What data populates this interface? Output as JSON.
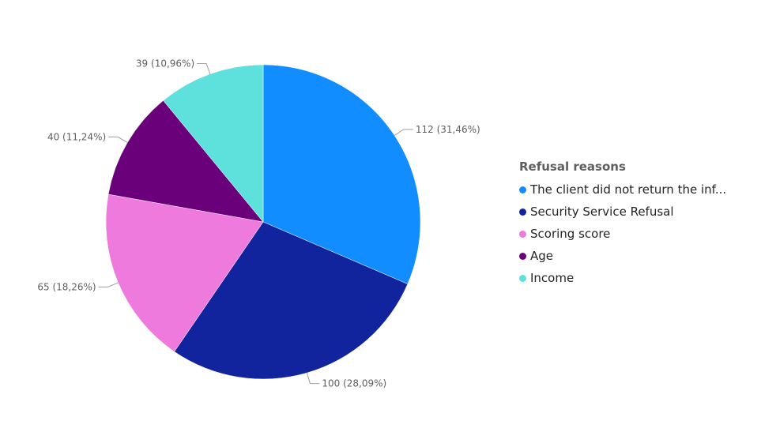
{
  "chart_data": {
    "type": "pie",
    "categories": [
      "The client did not return the inf...",
      "Security Service Refusal",
      "Scoring score",
      "Age",
      "Income"
    ],
    "values": [
      112,
      100,
      65,
      40,
      39
    ],
    "data_labels": [
      "112 (31,46%)",
      "100 (28,09%)",
      "65 (18,26%)",
      "40 (11,24%)",
      "39 (10,96%)"
    ],
    "colors": [
      "#118dff",
      "#12239e",
      "#e66c37",
      "#6b007b",
      "#5ee0dc"
    ],
    "legend_title": "Refusal reasons",
    "legend_position": "right",
    "start_angle": "12 o'clock, clockwise"
  }
}
